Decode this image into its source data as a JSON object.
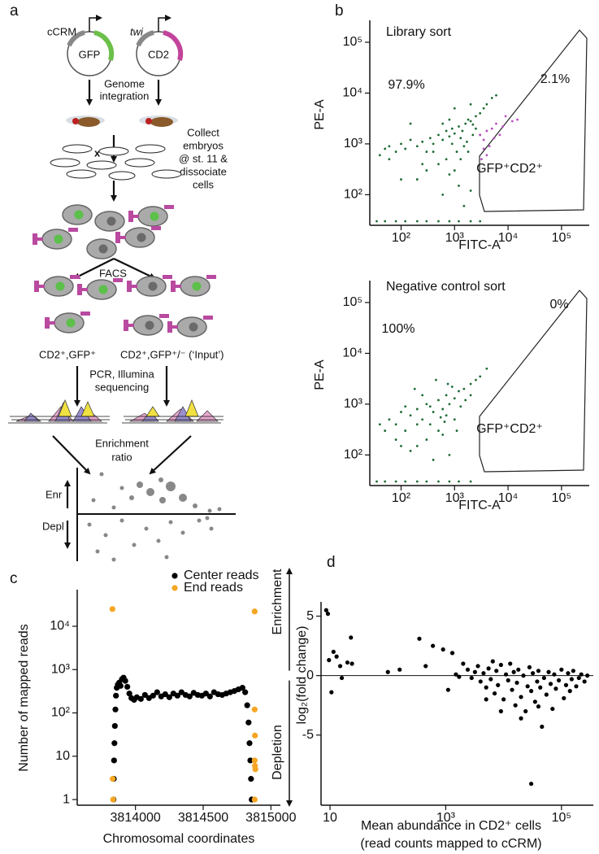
{
  "panel_labels": [
    "a",
    "b",
    "c",
    "d"
  ],
  "panel_a": {
    "plasmid_1": {
      "name": "cCRM",
      "gene": "GFP"
    },
    "plasmid_2": {
      "name": "twi",
      "gene": "CD2"
    },
    "step_1": [
      "Genome",
      "integration"
    ],
    "cross": "x",
    "step_2": [
      "Collect",
      "embryos",
      "@ st. 11 &",
      "dissociate",
      "cells"
    ],
    "step_3": "FACS",
    "fraction_1": "CD2⁺,GFP⁺",
    "fraction_2": "CD2⁺,GFP⁺/⁻ (‘Input’)",
    "step_4": [
      "PCR, Illumina",
      "sequencing"
    ],
    "step_5": [
      "Enrichment",
      "ratio"
    ],
    "enr": "Enr",
    "depl": "Depl"
  },
  "chart_data": [
    {
      "type": "scatter",
      "title": "Library sort",
      "x_label": "FITC-A",
      "y_label": "PE-A",
      "xscale": "log",
      "yscale": "log",
      "xlim": [
        26,
        330000
      ],
      "ylim": [
        25,
        270000
      ],
      "xticks": [
        {
          "value": 100,
          "label": "10²"
        },
        {
          "value": 1000,
          "label": "10³"
        },
        {
          "value": 10000,
          "label": "10⁴"
        },
        {
          "value": 100000,
          "label": "10⁵"
        }
      ],
      "yticks": [
        {
          "value": 100,
          "label": "10²"
        },
        {
          "value": 1000,
          "label": "10³"
        },
        {
          "value": 10000,
          "label": "10⁴"
        },
        {
          "value": 100000,
          "label": "10⁵"
        }
      ],
      "annotations": [
        "97.9%",
        "2.1%",
        "GFP⁺CD2⁺"
      ],
      "series": [
        {
          "color": "#1d6b34",
          "x": [
            50,
            60,
            80,
            100,
            40,
            120,
            150,
            200,
            250,
            300,
            350,
            400,
            500,
            600,
            700,
            800,
            900,
            1000,
            1200,
            1400,
            1600,
            1800,
            2000,
            2500,
            3000,
            3500,
            4000,
            5000,
            6000,
            2200,
            1500,
            1100,
            700,
            500,
            300,
            200,
            800,
            1200,
            2000,
            600,
            1500,
            400,
            100,
            250,
            1000,
            1300,
            1700,
            2500,
            3000,
            800,
            1000,
            600,
            2000,
            150,
            60,
            1800,
            900,
            1300,
            2200,
            35,
            50,
            80,
            120,
            200,
            300,
            500,
            800,
            1200,
            2000,
            3000
          ],
          "values": [
            800,
            900,
            700,
            1000,
            600,
            800,
            1200,
            900,
            1100,
            700,
            1300,
            1000,
            1500,
            1200,
            1800,
            1400,
            2000,
            1600,
            2200,
            1800,
            2500,
            3000,
            2800,
            3500,
            4000,
            5000,
            6000,
            8000,
            9000,
            1500,
            900,
            700,
            500,
            400,
            300,
            200,
            250,
            150,
            120,
            100,
            60,
            700,
            200,
            400,
            300,
            500,
            1100,
            2000,
            1500,
            3000,
            5000,
            2500,
            6000,
            2500,
            500,
            700,
            1000,
            1300,
            2400,
            30,
            30,
            30,
            30,
            30,
            30,
            30,
            30,
            30,
            30,
            30
          ]
        },
        {
          "color": "#b84cc0",
          "x": [
            3500,
            4000,
            4500,
            5000,
            3000,
            6000,
            4000,
            3500,
            7000,
            8000,
            9000,
            5500,
            3200,
            12000,
            15000
          ],
          "values": [
            1200,
            1800,
            900,
            2000,
            1500,
            2500,
            600,
            800,
            1500,
            2200,
            3500,
            1300,
            500,
            2800,
            3000
          ]
        }
      ]
    },
    {
      "type": "scatter",
      "title": "Negative control sort",
      "x_label": "FITC-A",
      "y_label": "PE-A",
      "xscale": "log",
      "yscale": "log",
      "xlim": [
        26,
        330000
      ],
      "ylim": [
        25,
        270000
      ],
      "xticks": [
        {
          "value": 100,
          "label": "10²"
        },
        {
          "value": 1000,
          "label": "10³"
        },
        {
          "value": 10000,
          "label": "10⁴"
        },
        {
          "value": 100000,
          "label": "10⁵"
        }
      ],
      "yticks": [
        {
          "value": 100,
          "label": "10²"
        },
        {
          "value": 1000,
          "label": "10³"
        },
        {
          "value": 10000,
          "label": "10⁴"
        },
        {
          "value": 100000,
          "label": "10⁵"
        }
      ],
      "annotations": [
        "100%",
        "0%",
        "GFP⁺CD2⁺"
      ],
      "series": [
        {
          "color": "#1d6b34",
          "x": [
            50,
            60,
            80,
            100,
            120,
            150,
            200,
            250,
            300,
            350,
            400,
            500,
            600,
            700,
            800,
            1000,
            1200,
            1500,
            2000,
            2500,
            3000,
            4000,
            500,
            300,
            200,
            150,
            600,
            800,
            400,
            1000,
            1300,
            700,
            250,
            180,
            100,
            450,
            900,
            350,
            650,
            1100,
            1600,
            2000,
            200,
            120,
            80,
            40,
            550,
            750,
            35,
            50,
            80,
            120,
            200,
            300,
            500,
            800,
            1200,
            2000
          ],
          "values": [
            300,
            500,
            400,
            700,
            300,
            600,
            800,
            500,
            1000,
            400,
            700,
            1200,
            800,
            1500,
            1000,
            1300,
            1800,
            2000,
            2500,
            3000,
            3500,
            5000,
            300,
            200,
            150,
            120,
            250,
            100,
            80,
            500,
            900,
            600,
            1500,
            2000,
            150,
            3000,
            2200,
            900,
            450,
            300,
            1200,
            1500,
            400,
            900,
            200,
            400,
            550,
            2500,
            30,
            30,
            30,
            30,
            30,
            30,
            30,
            30,
            30,
            30
          ]
        }
      ]
    },
    {
      "type": "scatter",
      "x_label": "Chromosomal coordinates",
      "y_label": "Number of mapped reads",
      "yscale": "log",
      "xlim": [
        3813570,
        3815070
      ],
      "ylim": [
        0.74,
        70000
      ],
      "xticks": [
        3814000,
        3814500,
        3815000
      ],
      "yticks": [
        1,
        10,
        {
          "value": 100,
          "label": "10²"
        },
        {
          "value": 1000,
          "label": "10³"
        },
        {
          "value": 10000,
          "label": "10⁴"
        }
      ],
      "legend": "top-right",
      "series": [
        {
          "name": "Center reads",
          "color": "#000000",
          "x": [
            3813838,
            3813840,
            3813842,
            3813845,
            3813848,
            3813852,
            3813856,
            3813862,
            3813870,
            3813880,
            3813890,
            3813900,
            3813912,
            3813925,
            3813940,
            3813955,
            3813970,
            3813990,
            3814010,
            3814040,
            3814070,
            3814100,
            3814130,
            3814160,
            3814190,
            3814220,
            3814250,
            3814280,
            3814310,
            3814340,
            3814370,
            3814400,
            3814430,
            3814460,
            3814490,
            3814520,
            3814550,
            3814580,
            3814610,
            3814640,
            3814670,
            3814700,
            3814730,
            3814760,
            3814790,
            3814810,
            3814825,
            3814835,
            3814842,
            3814848,
            3814853,
            3814858
          ],
          "values": [
            1,
            3,
            8,
            20,
            50,
            120,
            250,
            380,
            450,
            500,
            420,
            600,
            650,
            550,
            400,
            280,
            220,
            200,
            230,
            210,
            260,
            220,
            250,
            300,
            240,
            270,
            230,
            280,
            250,
            300,
            260,
            240,
            290,
            260,
            250,
            280,
            240,
            300,
            270,
            260,
            280,
            300,
            320,
            350,
            380,
            300,
            150,
            60,
            20,
            8,
            3,
            1
          ]
        },
        {
          "name": "End reads",
          "color": "#f5a623",
          "x": [
            3813830,
            3813832,
            3813835,
            3814880,
            3814880,
            3814882,
            3814880,
            3814882,
            3814885,
            3814880
          ],
          "values": [
            25000,
            3,
            1,
            22000,
            120,
            30,
            8,
            6,
            5,
            1
          ]
        }
      ]
    },
    {
      "type": "scatter",
      "y_label": "log₂(fold change)",
      "x_label": [
        "Mean abundance in CD2⁺ cells",
        "(read counts mapped to cCRM)"
      ],
      "side_labels": [
        "Enrichment",
        "Depletion"
      ],
      "xscale": "log",
      "xlim": [
        7,
        355000
      ],
      "ylim": [
        -10.9,
        6.2
      ],
      "xticks": [
        10,
        {
          "value": 1000,
          "label": "10³"
        },
        {
          "value": 100000,
          "label": "10⁵"
        }
      ],
      "yticks": [
        5,
        0,
        -5
      ],
      "hline": 0,
      "series": [
        {
          "color": "#000000",
          "x": [
            8.6,
            9.2,
            9.6,
            10.6,
            11.5,
            13,
            15,
            16,
            20,
            23,
            24,
            100,
            160,
            350,
            450,
            600,
            900,
            1100,
            1300,
            1500,
            1700,
            2000,
            2400,
            2800,
            3200,
            3600,
            4000,
            4500,
            5000,
            5500,
            6000,
            6500,
            7000,
            7500,
            8000,
            9000,
            10000,
            11000,
            12000,
            13000,
            14000,
            15000,
            16000,
            17000,
            18000,
            20000,
            22000,
            24000,
            26000,
            28000,
            30000,
            30000,
            32000,
            35000,
            38000,
            40000,
            43000,
            46000,
            50000,
            55000,
            60000,
            65000,
            70000,
            75000,
            80000,
            90000,
            100000,
            110000,
            120000,
            130000,
            140000,
            150000,
            160000,
            180000,
            200000,
            220000,
            250000,
            280000,
            9000,
            5000,
            20000,
            40000
          ],
          "values": [
            5.5,
            5.2,
            1.3,
            -1.4,
            2.0,
            1.6,
            0.8,
            -0.2,
            1.1,
            3.2,
            1.0,
            0.3,
            0.5,
            3.1,
            0.8,
            2.5,
            2.2,
            -1.2,
            1.9,
            0.1,
            -0.1,
            1.0,
            0.5,
            -0.2,
            0.3,
            0.8,
            -0.5,
            0.2,
            -1.0,
            0.6,
            -0.3,
            1.2,
            -1.5,
            0.4,
            -0.8,
            0.9,
            -2.0,
            0.1,
            -0.4,
            1.0,
            -1.2,
            0.3,
            -2.5,
            -0.6,
            0.5,
            -1.8,
            0.0,
            -3.0,
            -0.9,
            0.7,
            -9.1,
            -1.3,
            0.2,
            -2.2,
            -0.5,
            0.4,
            -1.0,
            -4.3,
            -0.2,
            -1.6,
            0.3,
            -0.7,
            -2.8,
            0.1,
            -1.1,
            -0.4,
            0.5,
            -1.9,
            -0.8,
            0.2,
            -1.3,
            -0.3,
            0.4,
            -0.9,
            -0.2,
            0.1,
            -0.5,
            0.0,
            -3.0,
            -2.0,
            -3.6,
            -2.6
          ]
        }
      ]
    }
  ]
}
